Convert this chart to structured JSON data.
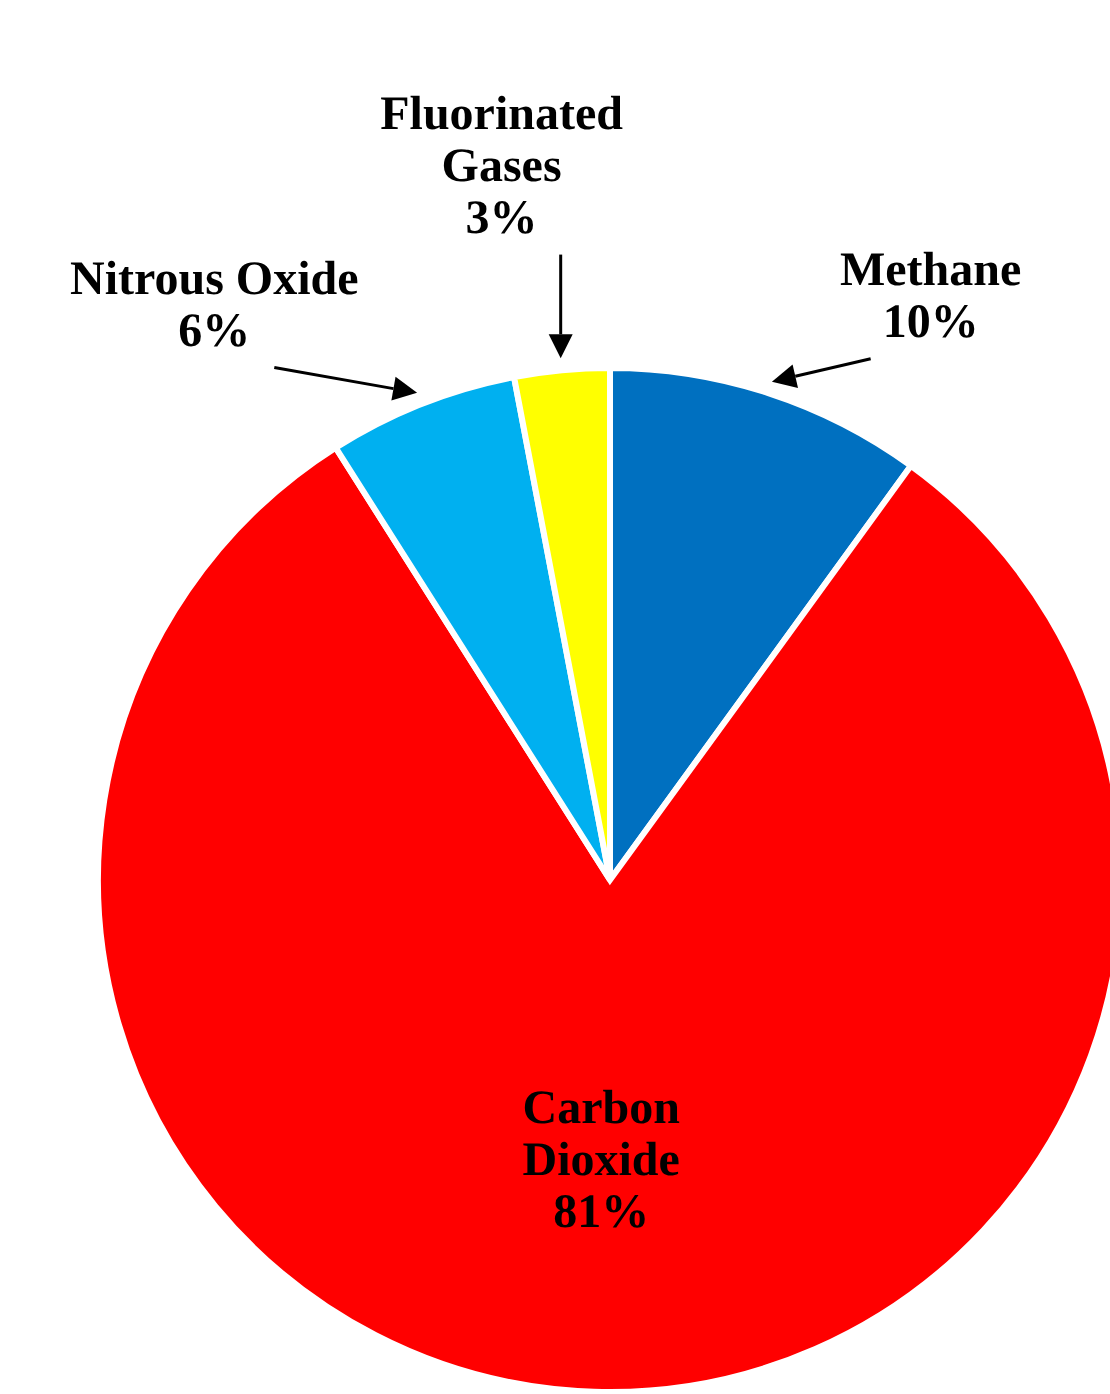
{
  "chart_data": {
    "type": "pie",
    "categories": [
      "Methane",
      "Carbon Dioxide",
      "Nitrous Oxide",
      "Fluorinated Gases"
    ],
    "values": [
      10,
      81,
      6,
      3
    ],
    "colors": [
      "#0070c0",
      "#ff0000",
      "#00b0f0",
      "#ffff00"
    ],
    "value_labels": [
      "10%",
      "81%",
      "6%",
      "3%"
    ]
  }
}
